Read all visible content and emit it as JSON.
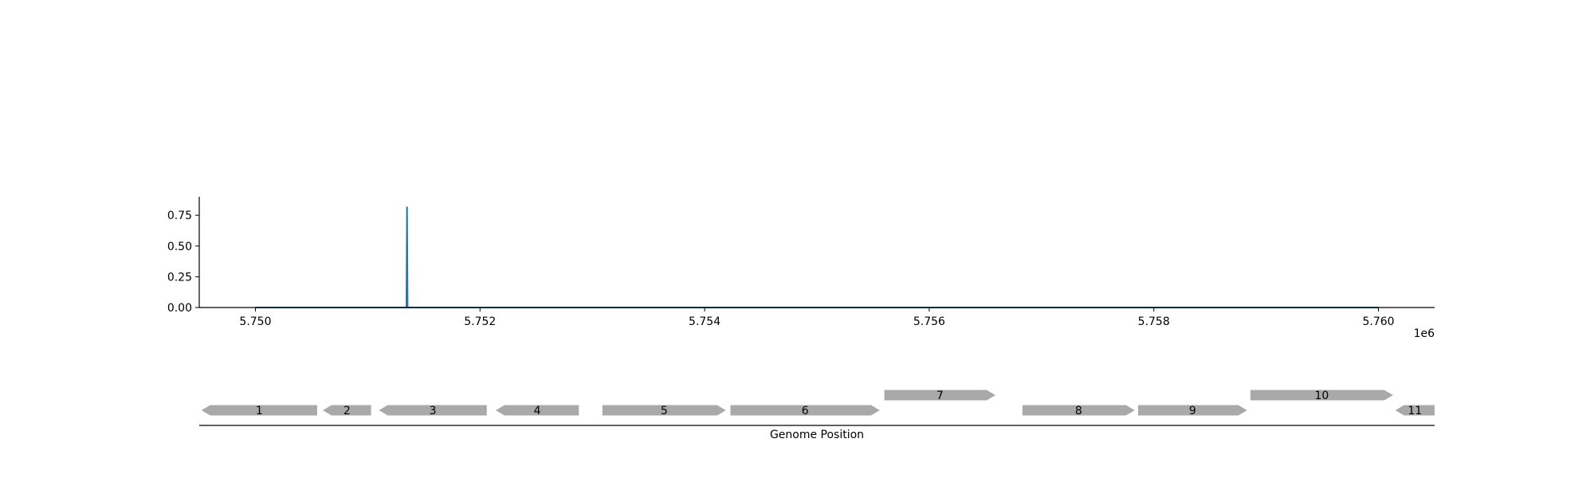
{
  "chart_data": [
    {
      "type": "line",
      "x_scale_label": "1e6",
      "xlim": [
        5749500,
        5760500
      ],
      "ylim": [
        0,
        0.9
      ],
      "x_ticks": [
        5750000,
        5752000,
        5754000,
        5756000,
        5758000,
        5760000
      ],
      "x_tick_labels": [
        "5.750",
        "5.752",
        "5.754",
        "5.756",
        "5.758",
        "5.760"
      ],
      "y_ticks": [
        0,
        0.25,
        0.5,
        0.75
      ],
      "y_tick_labels": [
        "0.00",
        "0.25",
        "0.50",
        "0.75"
      ],
      "series": [
        {
          "color": "#1f77b4",
          "x": [
            5750000,
            5751345,
            5751350,
            5751355,
            5760000
          ],
          "y": [
            0,
            0,
            0.82,
            0,
            0
          ]
        }
      ],
      "grid": false
    },
    {
      "type": "gene-map",
      "xlabel": "Genome Position",
      "xlim": [
        5749500,
        5760500
      ],
      "feature_color": "#a9a9a9",
      "genes": [
        {
          "label": "1",
          "start": 5749520,
          "end": 5750550,
          "strand": "-",
          "row": 0
        },
        {
          "label": "2",
          "start": 5750600,
          "end": 5751030,
          "strand": "-",
          "row": 0
        },
        {
          "label": "3",
          "start": 5751100,
          "end": 5752060,
          "strand": "-",
          "row": 0
        },
        {
          "label": "4",
          "start": 5752140,
          "end": 5752880,
          "strand": "-",
          "row": 0
        },
        {
          "label": "5",
          "start": 5753090,
          "end": 5754190,
          "strand": "+",
          "row": 0
        },
        {
          "label": "6",
          "start": 5754230,
          "end": 5755560,
          "strand": "+",
          "row": 0
        },
        {
          "label": "7",
          "start": 5755600,
          "end": 5756590,
          "strand": "+",
          "row": 1
        },
        {
          "label": "8",
          "start": 5756830,
          "end": 5757830,
          "strand": "+",
          "row": 0
        },
        {
          "label": "9",
          "start": 5757860,
          "end": 5758830,
          "strand": "+",
          "row": 0
        },
        {
          "label": "10",
          "start": 5758860,
          "end": 5760130,
          "strand": "+",
          "row": 1
        },
        {
          "label": "11",
          "start": 5760150,
          "end": 5760500,
          "strand": "-",
          "row": 0
        }
      ]
    }
  ]
}
